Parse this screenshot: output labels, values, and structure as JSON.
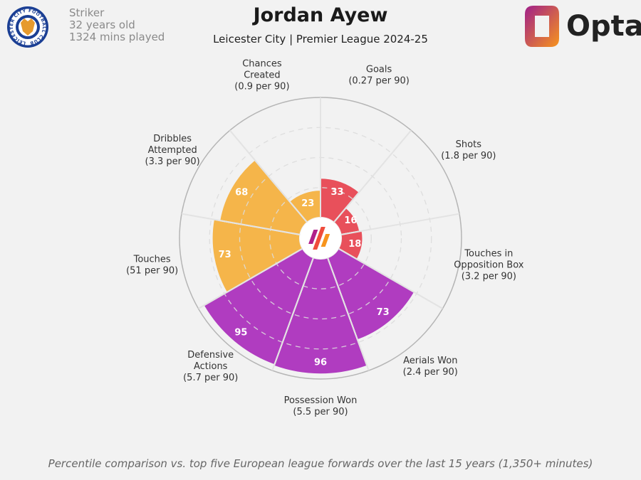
{
  "header": {
    "title": "Jordan Ayew",
    "subtitle": "Leicester City | Premier League 2024-25",
    "position": "Striker",
    "age": "32 years old",
    "minutes": "1324 mins played",
    "club_badge_text": "LEICESTER CITY FOOTBALL CLUB",
    "brand": "Opta"
  },
  "footnote": "Percentile comparison vs. top five European league forwards over the last 15 years (1,350+ minutes)",
  "colors": {
    "attacking": "#e8505b",
    "possession": "#f5b54a",
    "defending": "#b03cc0",
    "background": "#f2f2f2"
  },
  "chart_data": {
    "type": "pizza",
    "range": [
      0,
      100
    ],
    "gridlines": [
      25,
      50,
      75
    ],
    "categories": [
      {
        "label": "Goals",
        "sub": "(0.27 per 90)",
        "value": 33,
        "group": "attacking"
      },
      {
        "label": "Shots",
        "sub": "(1.8 per 90)",
        "value": 16,
        "group": "attacking"
      },
      {
        "label": "Touches in Opposition Box",
        "sub": "(3.2 per 90)",
        "value": 18,
        "group": "attacking"
      },
      {
        "label": "Aerials Won",
        "sub": "(2.4 per 90)",
        "value": 73,
        "group": "defending"
      },
      {
        "label": "Possession Won",
        "sub": "(5.5 per 90)",
        "value": 96,
        "group": "defending"
      },
      {
        "label": "Defensive Actions",
        "sub": "(5.7 per 90)",
        "value": 95,
        "group": "defending"
      },
      {
        "label": "Touches",
        "sub": "(51 per 90)",
        "value": 73,
        "group": "possession"
      },
      {
        "label": "Dribbles Attempted",
        "sub": "(3.3 per 90)",
        "value": 68,
        "group": "possession"
      },
      {
        "label": "Chances Created",
        "sub": "(0.9 per 90)",
        "value": 23,
        "group": "possession"
      }
    ]
  }
}
